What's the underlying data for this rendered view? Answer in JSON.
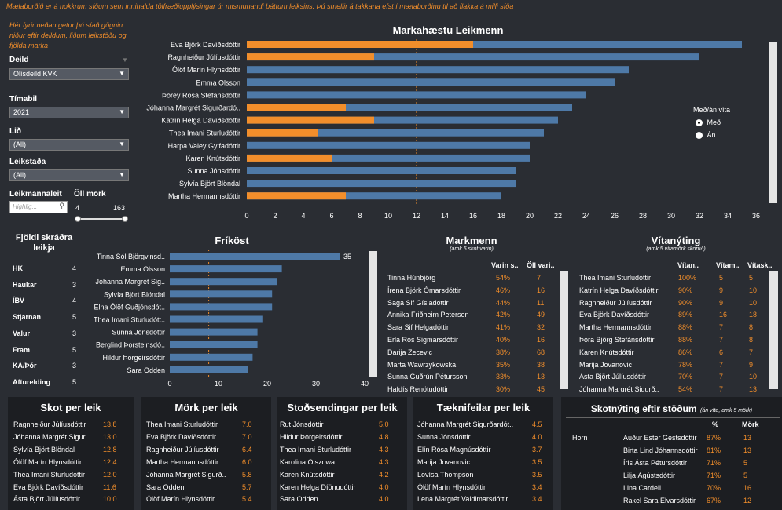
{
  "intro": {
    "line1": "Mælaborðið er á nokkrum síðum sem innihalda tölfræðiupplýsingar úr mismunandi þáttum leiksins. Þú smellir á takkana efst í mælaborðinu til að flakka á milli síða",
    "hint": "Hér fyrir neðan getur þú síað gögnin niður eftir deildum, liðum leikstöðu og fjölda marka"
  },
  "filters": {
    "deild_label": "Deild",
    "deild_value": "Olísdeild KVK",
    "timabil_label": "Tímabil",
    "timabil_value": "2021",
    "lid_label": "Lið",
    "lid_value": "(All)",
    "leikstada_label": "Leikstaða",
    "leikstada_value": "(All)",
    "search_label": "Leikmannaleit",
    "search_placeholder": "Highlig...",
    "mork_label": "Öll mörk",
    "mork_min": "4",
    "mork_max": "163"
  },
  "legend": {
    "title": "Með/án víta",
    "opt1": "Með",
    "opt2": "Án"
  },
  "chart_data": [
    {
      "id": "markahaestu",
      "type": "bar",
      "title": "Markahæstu Leikmenn",
      "categories": [
        "Eva Björk Davíðsdóttir",
        "Ragnheiður Júlíusdóttir",
        "Ólöf Marín Hlynsdóttir",
        "Emma Olsson",
        "Þórey Rósa Stefánsdóttir",
        "Jóhanna Margrét Sigurðardó..",
        "Katrín Helga Davíðsdóttir",
        "Thea Imani Sturludóttir",
        "Harpa Valey Gylfadóttir",
        "Karen Knútsdóttir",
        "Sunna Jónsdóttir",
        "Sylvía Björt Blöndal",
        "Martha Hermannsdóttir"
      ],
      "series": [
        {
          "name": "Með",
          "values": [
            35,
            32,
            27,
            26,
            24,
            23,
            22,
            21,
            20,
            20,
            19,
            19,
            18
          ]
        },
        {
          "name": "Án",
          "values": [
            16,
            9,
            0,
            0,
            0,
            7,
            9,
            5,
            0,
            6,
            0,
            0,
            7
          ]
        }
      ],
      "xticks": [
        0,
        2,
        4,
        6,
        8,
        10,
        12,
        14,
        16,
        18,
        20,
        22,
        24,
        26,
        28,
        30,
        32,
        34,
        36
      ],
      "xlim": [
        0,
        36
      ],
      "refline": 12
    },
    {
      "id": "frikost",
      "type": "bar",
      "title": "Fríköst",
      "categories": [
        "Tinna Sól Björgvinsd..",
        "Emma Olsson",
        "Jóhanna Margrét Sig..",
        "Sylvía Björt Blöndal",
        "Elna Ólöf Guðjónsdót..",
        "Thea Imani Sturludótt..",
        "Sunna Jónsdóttir",
        "Berglind Þorsteinsdó..",
        "Hildur Þorgeirsdóttir",
        "Sara Odden"
      ],
      "values": [
        35,
        23,
        22,
        21,
        21,
        19,
        18,
        18,
        17,
        16
      ],
      "value_label_first": "35",
      "xticks": [
        0,
        10,
        20,
        30,
        40
      ],
      "xlim": [
        0,
        40
      ],
      "refline": 8
    }
  ],
  "teams": {
    "title1": "Fjöldi skráðra",
    "title2": "leikja",
    "rows": [
      {
        "name": "HK",
        "value": "4"
      },
      {
        "name": "Haukar",
        "value": "3"
      },
      {
        "name": "ÍBV",
        "value": "4"
      },
      {
        "name": "Stjarnan",
        "value": "5"
      },
      {
        "name": "Valur",
        "value": "3"
      },
      {
        "name": "Fram",
        "value": "5"
      },
      {
        "name": "KA/Þór",
        "value": "3"
      },
      {
        "name": "Afturelding",
        "value": "5"
      }
    ]
  },
  "markmenn": {
    "title": "Markmenn",
    "subtitle": "(amk 5 skot varin)",
    "col1": "Varin s..",
    "col2": "Öll vari..",
    "rows": [
      {
        "name": "Tinna Húnbjörg",
        "pct": "54%",
        "n": "7"
      },
      {
        "name": "Írena Björk Ómarsdóttir",
        "pct": "46%",
        "n": "16"
      },
      {
        "name": "Saga Sif Gísladóttir",
        "pct": "44%",
        "n": "11"
      },
      {
        "name": "Annika Friðheim Petersen",
        "pct": "42%",
        "n": "49"
      },
      {
        "name": "Sara Sif Helgadóttir",
        "pct": "41%",
        "n": "32"
      },
      {
        "name": "Erla Rós Sigmarsdóttir",
        "pct": "40%",
        "n": "16"
      },
      {
        "name": "Darija Zecevic",
        "pct": "38%",
        "n": "68"
      },
      {
        "name": "Marta Wawrzykowska",
        "pct": "35%",
        "n": "38"
      },
      {
        "name": "Sunna Guðrún Pétursson",
        "pct": "33%",
        "n": "13"
      },
      {
        "name": "Hafdís Renötudóttir",
        "pct": "30%",
        "n": "45"
      }
    ]
  },
  "vitanyting": {
    "title": "Vítanýting",
    "subtitle": "(amk 5 vítamörk skoruð)",
    "col1": "Vítan..",
    "col2": "Vítam..",
    "col3": "Vítask..",
    "rows": [
      {
        "name": "Thea Imani Sturludóttir",
        "a": "100%",
        "b": "5",
        "c": "5"
      },
      {
        "name": "Katrín Helga Davíðsdóttir",
        "a": "90%",
        "b": "9",
        "c": "10"
      },
      {
        "name": "Ragnheiður Júlíusdóttir",
        "a": "90%",
        "b": "9",
        "c": "10"
      },
      {
        "name": "Eva Björk Davíðsdóttir",
        "a": "89%",
        "b": "16",
        "c": "18"
      },
      {
        "name": "Martha Hermannsdóttir",
        "a": "88%",
        "b": "7",
        "c": "8"
      },
      {
        "name": "Þóra Björg Stefánsdóttir",
        "a": "88%",
        "b": "7",
        "c": "8"
      },
      {
        "name": "Karen Knútsdóttir",
        "a": "86%",
        "b": "6",
        "c": "7"
      },
      {
        "name": "Marija Jovanovic",
        "a": "78%",
        "b": "7",
        "c": "9"
      },
      {
        "name": "Ásta Björt Júlíusdóttir",
        "a": "70%",
        "b": "7",
        "c": "10"
      },
      {
        "name": "Jóhanna Margrét Sigurð..",
        "a": "54%",
        "b": "7",
        "c": "13"
      }
    ]
  },
  "skot": {
    "title": "Skot per leik",
    "rows": [
      {
        "name": "Ragnheiður Júlíusdóttir",
        "value": "13.8"
      },
      {
        "name": "Jóhanna Margrét Sigur..",
        "value": "13.0"
      },
      {
        "name": "Sylvía Björt Blöndal",
        "value": "12.8"
      },
      {
        "name": "Ólöf Marín Hlynsdóttir",
        "value": "12.4"
      },
      {
        "name": "Thea Imani Sturludóttir",
        "value": "12.0"
      },
      {
        "name": "Eva Björk Davíðsdóttir",
        "value": "11.6"
      },
      {
        "name": "Ásta Björt Júlíusdóttir",
        "value": "10.0"
      }
    ]
  },
  "mork": {
    "title": "Mörk per leik",
    "rows": [
      {
        "name": "Thea Imani Sturludóttir",
        "value": "7.0"
      },
      {
        "name": "Eva Björk Davíðsdóttir",
        "value": "7.0"
      },
      {
        "name": "Ragnheiður Júlíusdóttir",
        "value": "6.4"
      },
      {
        "name": "Martha Hermannsdóttir",
        "value": "6.0"
      },
      {
        "name": "Jóhanna Margrét Sigurð..",
        "value": "5.8"
      },
      {
        "name": "Sara Odden",
        "value": "5.7"
      },
      {
        "name": "Ólöf Marín Hlynsdóttir",
        "value": "5.4"
      }
    ]
  },
  "stod": {
    "title": "Stoðsendingar per leik",
    "rows": [
      {
        "name": "Rut Jónsdóttir",
        "value": "5.0"
      },
      {
        "name": "Hildur Þorgeirsdóttir",
        "value": "4.8"
      },
      {
        "name": "Thea Imani Sturludóttir",
        "value": "4.3"
      },
      {
        "name": "Karolina Olszowa",
        "value": "4.3"
      },
      {
        "name": "Karen Knútsdóttir",
        "value": "4.2"
      },
      {
        "name": "Karen Helga Díönudóttir",
        "value": "4.0"
      },
      {
        "name": "Sara Odden",
        "value": "4.0"
      }
    ]
  },
  "taekni": {
    "title": "Tæknifeilar per leik",
    "rows": [
      {
        "name": "Jóhanna Margrét Sigurðardót..",
        "value": "4.5"
      },
      {
        "name": "Sunna Jónsdóttir",
        "value": "4.0"
      },
      {
        "name": "Elín Rósa Magnúsdóttir",
        "value": "3.7"
      },
      {
        "name": "Marija Jovanovic",
        "value": "3.5"
      },
      {
        "name": "Lovísa Thompson",
        "value": "3.5"
      },
      {
        "name": "Ólöf Marín Hlynsdóttir",
        "value": "3.4"
      },
      {
        "name": "Lena Margrét Valdimarsdóttir",
        "value": "3.4"
      }
    ]
  },
  "stodum": {
    "title": "Skotnýting eftir stöðum",
    "subtitle": "(án víta, amk 5 mörk)",
    "col1": "%",
    "col2": "Mörk",
    "group": "Horn",
    "rows": [
      {
        "name": "Auður Ester Gestsdóttir",
        "pct": "87%",
        "n": "13"
      },
      {
        "name": "Birta Lind Jóhannsdóttir",
        "pct": "81%",
        "n": "13"
      },
      {
        "name": "Íris Ásta Pétursdóttir",
        "pct": "71%",
        "n": "5"
      },
      {
        "name": "Lilja Ágústsdóttir",
        "pct": "71%",
        "n": "5"
      },
      {
        "name": "Lina Cardell",
        "pct": "70%",
        "n": "16"
      },
      {
        "name": "Rakel Sara Elvarsdóttir",
        "pct": "67%",
        "n": "12"
      }
    ]
  },
  "colors": {
    "bar_blue": "#4e79a7",
    "bar_orange": "#f28e2b",
    "bg": "#2a2d33",
    "panel": "#1c1e22"
  }
}
